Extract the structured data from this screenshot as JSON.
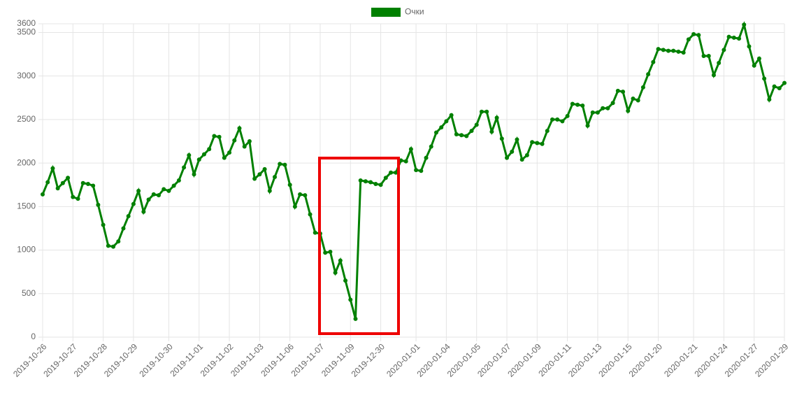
{
  "chart_data": {
    "type": "line",
    "categories": [
      "2019-10-26",
      null,
      null,
      null,
      null,
      null,
      "2019-10-27",
      null,
      null,
      null,
      null,
      null,
      "2019-10-28",
      null,
      null,
      null,
      null,
      null,
      "2019-10-29",
      null,
      null,
      null,
      null,
      null,
      null,
      "2019-10-30",
      null,
      null,
      null,
      null,
      null,
      "2019-11-01",
      null,
      null,
      null,
      null,
      null,
      "2019-11-02",
      null,
      null,
      null,
      null,
      null,
      "2019-11-03",
      null,
      null,
      null,
      null,
      null,
      "2019-11-06",
      null,
      null,
      null,
      null,
      null,
      "2019-11-07",
      null,
      null,
      null,
      null,
      null,
      "2019-11-09",
      null,
      null,
      null,
      null,
      null,
      "2019-12-30",
      null,
      null,
      null,
      null,
      null,
      null,
      "2020-01-01",
      null,
      null,
      null,
      null,
      null,
      "2020-01-04",
      null,
      null,
      null,
      null,
      null,
      "2020-01-05",
      null,
      null,
      null,
      null,
      null,
      "2020-01-07",
      null,
      null,
      null,
      null,
      null,
      "2020-01-09",
      null,
      null,
      null,
      null,
      null,
      "2020-01-11",
      null,
      null,
      null,
      null,
      null,
      "2020-01-13",
      null,
      null,
      null,
      null,
      null,
      "2020-01-15",
      null,
      null,
      null,
      null,
      null,
      "2020-01-20",
      null,
      null,
      null,
      null,
      null,
      null,
      "2020-01-21",
      null,
      null,
      null,
      null,
      null,
      "2020-01-24",
      null,
      null,
      null,
      null,
      null,
      "2020-01-27",
      null,
      null,
      null,
      null,
      null,
      "2020-01-29"
    ],
    "series": [
      {
        "name": "Очки",
        "color": "#008000",
        "values": [
          1640,
          1780,
          1940,
          1710,
          1770,
          1830,
          1610,
          1590,
          1770,
          1760,
          1740,
          1520,
          1290,
          1050,
          1040,
          1100,
          1250,
          1390,
          1530,
          1680,
          1440,
          1580,
          1640,
          1630,
          1700,
          1680,
          1740,
          1800,
          1950,
          2090,
          1870,
          2040,
          2100,
          2160,
          2310,
          2300,
          2060,
          2120,
          2260,
          2400,
          2190,
          2250,
          1820,
          1870,
          1930,
          1680,
          1840,
          1990,
          1980,
          1750,
          1500,
          1640,
          1630,
          1410,
          1200,
          1190,
          970,
          980,
          740,
          880,
          650,
          430,
          210,
          1800,
          1790,
          1780,
          1760,
          1750,
          1830,
          1890,
          1890,
          2030,
          2020,
          2160,
          1920,
          1910,
          2060,
          2190,
          2350,
          2410,
          2480,
          2550,
          2330,
          2320,
          2310,
          2370,
          2440,
          2590,
          2590,
          2360,
          2520,
          2280,
          2060,
          2130,
          2270,
          2040,
          2090,
          2240,
          2230,
          2220,
          2370,
          2500,
          2500,
          2480,
          2540,
          2680,
          2670,
          2660,
          2430,
          2580,
          2580,
          2630,
          2630,
          2690,
          2830,
          2820,
          2600,
          2740,
          2720,
          2870,
          3020,
          3160,
          3310,
          3300,
          3290,
          3290,
          3280,
          3270,
          3420,
          3480,
          3470,
          3230,
          3230,
          3010,
          3150,
          3300,
          3450,
          3440,
          3430,
          3590,
          3340,
          3120,
          3200,
          2970,
          2730,
          2880,
          2860,
          2920
        ]
      }
    ],
    "ylim": [
      0,
      3600
    ],
    "yticks": [
      0,
      500,
      1000,
      1500,
      2000,
      2500,
      3000,
      3500,
      3600
    ],
    "grid": true
  }
}
